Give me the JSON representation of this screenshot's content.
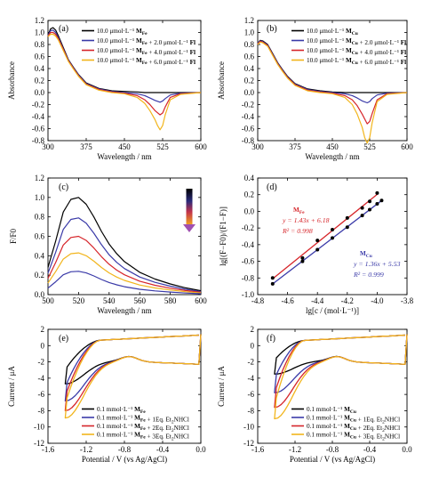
{
  "chart_data": [
    {
      "panel": "(a)",
      "type": "line",
      "xlabel": "Wavelength / nm",
      "ylabel": "Absorbance",
      "xlim": [
        300,
        600
      ],
      "ylim": [
        -0.8,
        1.2
      ],
      "xticks": [
        300,
        375,
        450,
        525,
        600
      ],
      "yticks": [
        -0.8,
        -0.6,
        -0.4,
        -0.2,
        0.0,
        0.2,
        0.4,
        0.6,
        0.8,
        1.0,
        1.2
      ],
      "xtick_labels": [
        "300",
        "375",
        "450",
        "525",
        "600"
      ],
      "ytick_labels": [
        "-0.8",
        "-0.6",
        "-0.4",
        "-0.2",
        "0.0",
        "0.2",
        "0.4",
        "0.6",
        "0.8",
        "1.0",
        "1.2"
      ],
      "legend_position": "top-right",
      "series": [
        {
          "name": "10.0 μmol·L⁻¹ MFe",
          "color": "#000000",
          "x": [
            300,
            305,
            310,
            315,
            320,
            330,
            340,
            350,
            360,
            375,
            400,
            425,
            450,
            475,
            490,
            500,
            510,
            520,
            530,
            540,
            560,
            600
          ],
          "y": [
            0.95,
            1.06,
            1.08,
            1.04,
            0.95,
            0.75,
            0.55,
            0.42,
            0.3,
            0.16,
            0.07,
            0.03,
            0.02,
            0.01,
            0.0,
            0.0,
            0.0,
            0.0,
            0.0,
            0.0,
            0.0,
            0.0
          ]
        },
        {
          "name": "10.0 μmol·L⁻¹ MFe + 2.0 μmol·L⁻¹ Fl",
          "color": "#3a3aa8",
          "x": [
            300,
            305,
            310,
            315,
            320,
            330,
            340,
            350,
            360,
            375,
            400,
            425,
            450,
            475,
            490,
            500,
            510,
            520,
            525,
            530,
            540,
            560,
            600
          ],
          "y": [
            0.95,
            1.03,
            1.04,
            1.0,
            0.92,
            0.73,
            0.54,
            0.41,
            0.29,
            0.15,
            0.06,
            0.02,
            0.0,
            -0.02,
            -0.05,
            -0.09,
            -0.13,
            -0.16,
            -0.14,
            -0.1,
            -0.04,
            -0.01,
            0.0
          ]
        },
        {
          "name": "10.0 μmol·L⁻¹ MFe + 4.0 μmol·L⁻¹ Fl",
          "color": "#d6252a",
          "x": [
            300,
            305,
            310,
            315,
            320,
            330,
            340,
            350,
            360,
            375,
            400,
            425,
            450,
            475,
            490,
            500,
            510,
            520,
            525,
            530,
            540,
            560,
            600
          ],
          "y": [
            0.94,
            1.0,
            1.0,
            0.97,
            0.9,
            0.72,
            0.53,
            0.4,
            0.28,
            0.14,
            0.05,
            0.01,
            -0.01,
            -0.05,
            -0.12,
            -0.2,
            -0.3,
            -0.37,
            -0.34,
            -0.24,
            -0.08,
            -0.02,
            0.0
          ]
        },
        {
          "name": "10.0 μmol·L⁻¹ MFe + 6.0 μmol·L⁻¹ Fl",
          "color": "#f2b51c",
          "x": [
            300,
            305,
            310,
            315,
            320,
            330,
            340,
            350,
            360,
            375,
            400,
            425,
            450,
            475,
            490,
            500,
            510,
            515,
            520,
            525,
            530,
            540,
            560,
            600
          ],
          "y": [
            0.93,
            0.97,
            0.97,
            0.94,
            0.88,
            0.7,
            0.52,
            0.39,
            0.27,
            0.13,
            0.04,
            0.0,
            -0.02,
            -0.08,
            -0.18,
            -0.3,
            -0.45,
            -0.55,
            -0.62,
            -0.55,
            -0.37,
            -0.12,
            -0.03,
            0.0
          ]
        }
      ]
    },
    {
      "panel": "(b)",
      "type": "line",
      "xlabel": "Wavelength / nm",
      "ylabel": "Absorbance",
      "xlim": [
        300,
        600
      ],
      "ylim": [
        -0.8,
        1.2
      ],
      "xticks": [
        300,
        375,
        450,
        525,
        600
      ],
      "yticks": [
        -0.8,
        -0.6,
        -0.4,
        -0.2,
        0.0,
        0.2,
        0.4,
        0.6,
        0.8,
        1.0,
        1.2
      ],
      "xtick_labels": [
        "300",
        "375",
        "450",
        "525",
        "600"
      ],
      "ytick_labels": [
        "-0.8",
        "-0.6",
        "-0.4",
        "-0.2",
        "0.0",
        "0.2",
        "0.4",
        "0.6",
        "0.8",
        "1.0",
        "1.2"
      ],
      "legend_position": "top-right",
      "series": [
        {
          "name": "10.0 μmol·L⁻¹ MCu",
          "color": "#000000",
          "x": [
            300,
            305,
            310,
            320,
            330,
            340,
            350,
            360,
            375,
            400,
            425,
            450,
            475,
            500,
            520,
            540,
            560,
            600
          ],
          "y": [
            0.82,
            0.87,
            0.86,
            0.8,
            0.65,
            0.5,
            0.38,
            0.27,
            0.15,
            0.06,
            0.03,
            0.01,
            0.0,
            0.0,
            0.0,
            0.0,
            0.0,
            0.0
          ]
        },
        {
          "name": "10.0 μmol·L⁻¹ MCu + 2.0 μmol·L⁻¹ Fl",
          "color": "#3a3aa8",
          "x": [
            300,
            305,
            310,
            320,
            330,
            340,
            350,
            360,
            375,
            400,
            425,
            450,
            475,
            490,
            500,
            510,
            520,
            525,
            530,
            540,
            560,
            600
          ],
          "y": [
            0.82,
            0.86,
            0.85,
            0.79,
            0.64,
            0.49,
            0.37,
            0.26,
            0.14,
            0.05,
            0.02,
            0.0,
            -0.02,
            -0.05,
            -0.09,
            -0.14,
            -0.17,
            -0.15,
            -0.1,
            -0.04,
            -0.01,
            0.0
          ]
        },
        {
          "name": "10.0 μmol·L⁻¹ MCu + 4.0 μmol·L⁻¹ Fl",
          "color": "#d6252a",
          "x": [
            300,
            305,
            310,
            320,
            330,
            340,
            350,
            360,
            375,
            400,
            425,
            450,
            475,
            490,
            500,
            510,
            520,
            525,
            530,
            540,
            560,
            600
          ],
          "y": [
            0.81,
            0.85,
            0.84,
            0.78,
            0.63,
            0.48,
            0.36,
            0.25,
            0.13,
            0.04,
            0.01,
            -0.01,
            -0.05,
            -0.12,
            -0.22,
            -0.36,
            -0.52,
            -0.48,
            -0.35,
            -0.12,
            -0.02,
            0.0
          ]
        },
        {
          "name": "10.0 μmol·L⁻¹ MCu + 6.0 μmol·L⁻¹ Fl",
          "color": "#f2b51c",
          "x": [
            300,
            305,
            310,
            320,
            330,
            340,
            350,
            360,
            375,
            400,
            425,
            450,
            475,
            490,
            500,
            510,
            515,
            520,
            525,
            530,
            540,
            560,
            600
          ],
          "y": [
            0.8,
            0.84,
            0.83,
            0.77,
            0.62,
            0.47,
            0.35,
            0.24,
            0.12,
            0.03,
            0.0,
            -0.02,
            -0.08,
            -0.2,
            -0.36,
            -0.58,
            -0.75,
            -0.84,
            -0.75,
            -0.5,
            -0.15,
            -0.03,
            0.0
          ]
        }
      ]
    },
    {
      "panel": "(c)",
      "type": "line",
      "xlabel": "Wavelength / nm",
      "ylabel": "F/F0",
      "xlim": [
        500,
        600
      ],
      "ylim": [
        0.0,
        1.2
      ],
      "xticks": [
        500,
        520,
        540,
        560,
        580,
        600
      ],
      "yticks": [
        0.0,
        0.2,
        0.4,
        0.6,
        0.8,
        1.0,
        1.2
      ],
      "xtick_labels": [
        "500",
        "520",
        "540",
        "560",
        "580",
        "600"
      ],
      "ytick_labels": [
        "0.0",
        "0.2",
        "0.4",
        "0.6",
        "0.8",
        "1.0",
        "1.2"
      ],
      "annotation": "gradient arrow pointing down (decreasing intensity)",
      "series": [
        {
          "color": "#000000",
          "peak": 1.0
        },
        {
          "color": "#3a3aa8",
          "peak": 0.79
        },
        {
          "color": "#d6252a",
          "peak": 0.6
        },
        {
          "color": "#f2b51c",
          "peak": 0.43
        },
        {
          "color": "#3a3aa8",
          "peak": 0.24
        }
      ],
      "shape": {
        "x": [
          500,
          505,
          510,
          515,
          520,
          525,
          530,
          535,
          540,
          545,
          550,
          560,
          570,
          580,
          590,
          600
        ],
        "frac": [
          0.28,
          0.55,
          0.85,
          0.98,
          1.0,
          0.93,
          0.8,
          0.65,
          0.52,
          0.42,
          0.34,
          0.23,
          0.16,
          0.11,
          0.07,
          0.04
        ]
      }
    },
    {
      "panel": "(d)",
      "type": "scatter",
      "xlabel": "lg[c / (mol·L⁻¹)]",
      "ylabel": "lg[(F−F0)/(F1−F)]",
      "xlim": [
        -4.8,
        -3.8
      ],
      "ylim": [
        -1.0,
        0.4
      ],
      "xticks": [
        -4.8,
        -4.6,
        -4.4,
        -4.2,
        -4.0,
        -3.8
      ],
      "yticks": [
        -1.0,
        -0.8,
        -0.6,
        -0.4,
        -0.2,
        0.0,
        0.2,
        0.4
      ],
      "xtick_labels": [
        "-4.8",
        "-4.6",
        "-4.4",
        "-4.2",
        "-4.0",
        "-3.8"
      ],
      "ytick_labels": [
        "-1.0",
        "-0.8",
        "-0.6",
        "-0.4",
        "-0.2",
        "0.0",
        "0.2",
        "0.4"
      ],
      "series": [
        {
          "name": "MFe",
          "color": "#d6252a",
          "equation": "y = 1.43x + 6.18",
          "r2": "R² = 0.998",
          "x": [
            -4.7,
            -4.5,
            -4.4,
            -4.3,
            -4.2,
            -4.1,
            -4.05,
            -4.0
          ],
          "y": [
            -0.8,
            -0.56,
            -0.35,
            -0.22,
            -0.08,
            0.04,
            0.12,
            0.22
          ]
        },
        {
          "name": "MCu",
          "color": "#3a3aa8",
          "equation": "y = 1.36x + 5.53",
          "r2": "R² = 0.999",
          "x": [
            -4.7,
            -4.5,
            -4.4,
            -4.3,
            -4.2,
            -4.1,
            -4.05,
            -4.0,
            -3.97
          ],
          "y": [
            -0.87,
            -0.6,
            -0.46,
            -0.32,
            -0.19,
            -0.05,
            0.02,
            0.09,
            0.13
          ]
        }
      ]
    },
    {
      "panel": "(e)",
      "type": "line",
      "xlabel": "Potential / V (vs Ag/AgCl)",
      "ylabel": "Current / μA",
      "xlim": [
        -1.6,
        0.0
      ],
      "ylim": [
        -12,
        2
      ],
      "xticks": [
        -1.6,
        -1.2,
        -0.8,
        -0.4,
        0.0
      ],
      "yticks": [
        -12,
        -10,
        -8,
        -6,
        -4,
        -2,
        0,
        2
      ],
      "xtick_labels": [
        "-1.6",
        "-1.2",
        "-0.8",
        "-0.4",
        "0.0"
      ],
      "ytick_labels": [
        "-12",
        "-10",
        "-8",
        "-6",
        "-4",
        "-2",
        "0",
        "2"
      ],
      "legend_position": "lower-right",
      "series": [
        {
          "name": "0.1 mmol·L⁻¹ MFe",
          "color": "#000000",
          "peak": -5.4
        },
        {
          "name": "0.1 mmol·L⁻¹ MFe + 1Eq. Et2NHCl",
          "color": "#3a3aa8",
          "peak": -7.5
        },
        {
          "name": "0.1 mmol·L⁻¹ MFe + 2Eq. Et2NHCl",
          "color": "#d6252a",
          "peak": -8.7
        },
        {
          "name": "0.1 mmol·L⁻¹ MFe + 3Eq. Et2NHCl",
          "color": "#f2b51c",
          "peak": -9.6
        }
      ]
    },
    {
      "panel": "(f)",
      "type": "line",
      "xlabel": "Potential / V (vs Ag/AgCl)",
      "ylabel": "Current / μA",
      "xlim": [
        -1.6,
        0.0
      ],
      "ylim": [
        -12,
        2
      ],
      "xticks": [
        -1.6,
        -1.2,
        -0.8,
        -0.4,
        0.0
      ],
      "yticks": [
        -12,
        -10,
        -8,
        -6,
        -4,
        -2,
        0,
        2
      ],
      "xtick_labels": [
        "-1.6",
        "-1.2",
        "-0.8",
        "-0.4",
        "0.0"
      ],
      "ytick_labels": [
        "-12",
        "-10",
        "-8",
        "-6",
        "-4",
        "-2",
        "0",
        "2"
      ],
      "legend_position": "lower-right",
      "series": [
        {
          "name": "0.1 mmol·L⁻¹ MCu",
          "color": "#000000",
          "peak": -4.2
        },
        {
          "name": "0.1 mmol·L⁻¹ MCu + 1Eq. Et2NHCl",
          "color": "#3a3aa8",
          "peak": -6.5
        },
        {
          "name": "0.1 mmol·L⁻¹ MCu + 2Eq. Et2NHCl",
          "color": "#d6252a",
          "peak": -8.3
        },
        {
          "name": "0.1 mmol·L⁻¹ MCu + 3Eq. Et2NHCl",
          "color": "#f2b51c",
          "peak": -9.7
        }
      ]
    }
  ]
}
